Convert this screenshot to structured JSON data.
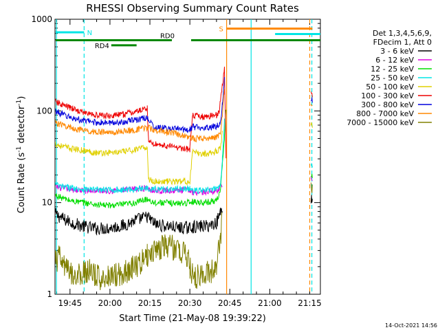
{
  "chart_data": {
    "type": "line",
    "title": "RHESSI Observing Summary Count Rates",
    "xlabel": "Start Time (21-May-08 19:39:22)",
    "ylabel_parts": [
      "Count Rate (s",
      "-1",
      " detector",
      "-1",
      ")"
    ],
    "ylabel": "Count Rate (s-1 detector-1)",
    "x_unit": "minutes of day (UT)",
    "xlim": [
      1179.37,
      1279.0
    ],
    "ylim": [
      1,
      1000
    ],
    "y_scale": "log",
    "x_ticks": [
      {
        "value": 1185,
        "label": "19:45"
      },
      {
        "value": 1200,
        "label": "20:00"
      },
      {
        "value": 1215,
        "label": "20:15"
      },
      {
        "value": 1230,
        "label": "20:30"
      },
      {
        "value": 1245,
        "label": "20:45"
      },
      {
        "value": 1260,
        "label": "21:00"
      },
      {
        "value": 1275,
        "label": "21:15"
      }
    ],
    "y_ticks": [
      {
        "value": 1,
        "label": "1"
      },
      {
        "value": 10,
        "label": "10"
      },
      {
        "value": 100,
        "label": "100"
      },
      {
        "value": 1000,
        "label": "1000"
      }
    ],
    "legend": {
      "placement": "right",
      "header": [
        "Det 1,3,4,5,6,9,",
        "FDecim 1, Att 0"
      ]
    },
    "series": [
      {
        "name": "3 - 6 keV",
        "color": "#000000",
        "x": [
          1179.5,
          1181,
          1183,
          1186,
          1190,
          1195,
          1200,
          1205,
          1210,
          1214,
          1216.5,
          1218,
          1222,
          1226,
          1230,
          1231,
          1234,
          1237,
          1240,
          1241.5,
          1242.2,
          1243,
          1274.5,
          1275.5,
          1276
        ],
        "y": [
          7.5,
          7,
          6.5,
          6,
          5.5,
          5.2,
          5.3,
          5.6,
          6.5,
          7,
          6,
          5.7,
          5.5,
          5.3,
          5.3,
          5.4,
          5.5,
          5.6,
          6,
          8,
          9,
          null,
          null,
          11,
          11
        ]
      },
      {
        "name": "6 - 12 keV",
        "color": "#e000e0",
        "x": [
          1179.5,
          1181,
          1185,
          1190,
          1195,
          1200,
          1205,
          1210,
          1214,
          1216.5,
          1220,
          1225,
          1230,
          1231,
          1235,
          1240,
          1241.5,
          1242.2,
          1243,
          1274.5,
          1275.5,
          1276
        ],
        "y": [
          15,
          14.5,
          14,
          13.5,
          13.5,
          13.5,
          13.7,
          14,
          14.5,
          13.5,
          13.5,
          13.5,
          13.8,
          13,
          13,
          13.5,
          15,
          16,
          null,
          null,
          18,
          18
        ]
      },
      {
        "name": "12 - 25 keV",
        "color": "#00dd00",
        "x": [
          1179.5,
          1181,
          1185,
          1190,
          1195,
          1200,
          1205,
          1210,
          1214,
          1216.5,
          1220,
          1225,
          1230,
          1231,
          1235,
          1240,
          1241.5,
          1242.2,
          1243,
          1243.5,
          1244,
          1274.5,
          1275.5,
          1276
        ],
        "y": [
          12,
          11.5,
          10.5,
          10,
          9.5,
          9.3,
          9.5,
          10,
          11,
          10,
          10,
          9.8,
          10,
          10.3,
          10,
          10.5,
          14,
          25,
          50,
          100,
          null,
          null,
          20,
          20
        ]
      },
      {
        "name": "25 - 50 keV",
        "color": "#00e5e5",
        "x": [
          1179.5,
          1181,
          1185,
          1190,
          1195,
          1200,
          1205,
          1210,
          1214,
          1216.5,
          1220,
          1225,
          1230,
          1231,
          1235,
          1240,
          1241.5,
          1242.2,
          1243,
          1244,
          1274.5,
          1275.5,
          1276
        ],
        "y": [
          16,
          15,
          14.5,
          14,
          13.8,
          13.7,
          13.8,
          14,
          14.5,
          14,
          14,
          14,
          14.2,
          13.5,
          13.5,
          14,
          16,
          30,
          80,
          null,
          null,
          25,
          25
        ]
      },
      {
        "name": "50 - 100 keV",
        "color": "#e0d000",
        "x": [
          1179.5,
          1181,
          1185,
          1190,
          1195,
          1200,
          1205,
          1210,
          1214,
          1214.5,
          1216.5,
          1220,
          1225,
          1230,
          1231,
          1235,
          1240,
          1241.5,
          1242.2,
          1243,
          1274.5,
          1275.5,
          1276
        ],
        "y": [
          44,
          42,
          39,
          37,
          35,
          35,
          36,
          38,
          40,
          18,
          17,
          17,
          17,
          17,
          35,
          34,
          36,
          40,
          60,
          null,
          null,
          70,
          70
        ]
      },
      {
        "name": "100 - 300 keV",
        "color": "#ee0000",
        "x": [
          1179.5,
          1181,
          1185,
          1190,
          1195,
          1200,
          1205,
          1210,
          1214,
          1214.5,
          1216.5,
          1220,
          1225,
          1230,
          1231,
          1235,
          1240,
          1241,
          1242,
          1243,
          1243.6,
          1244,
          1274.5,
          1275.5,
          1276
        ],
        "y": [
          125,
          120,
          108,
          96,
          90,
          88,
          92,
          98,
          108,
          46,
          44,
          42,
          40,
          38,
          88,
          86,
          90,
          100,
          170,
          290,
          30,
          null,
          null,
          150,
          150
        ]
      },
      {
        "name": "300 - 800 keV",
        "color": "#0000dd",
        "x": [
          1179.5,
          1181,
          1185,
          1190,
          1195,
          1200,
          1205,
          1210,
          1214,
          1216.5,
          1220,
          1225,
          1230,
          1231,
          1235,
          1240,
          1241.5,
          1242.2,
          1243,
          1244,
          1274.5,
          1275.5,
          1276
        ],
        "y": [
          100,
          95,
          85,
          78,
          75,
          74,
          76,
          80,
          85,
          66,
          65,
          64,
          62,
          67,
          66,
          68,
          75,
          120,
          220,
          null,
          null,
          130,
          130
        ]
      },
      {
        "name": "800 - 7000 keV",
        "color": "#ff8800",
        "x": [
          1179.5,
          1181,
          1185,
          1190,
          1195,
          1200,
          1205,
          1210,
          1214,
          1216.5,
          1220,
          1225,
          1230,
          1231,
          1235,
          1240,
          1241.5,
          1242.2,
          1243,
          1244,
          1274.5,
          1275.5,
          1276
        ],
        "y": [
          75,
          72,
          66,
          61,
          59,
          58,
          60,
          62,
          66,
          62,
          60,
          56,
          52,
          50,
          50,
          52,
          57,
          90,
          180,
          null,
          null,
          110,
          110
        ]
      },
      {
        "name": "7000 - 15000 keV",
        "color": "#808000",
        "x": [
          1179.5,
          1181,
          1184,
          1188,
          1192,
          1196,
          1200,
          1204,
          1208,
          1212,
          1214,
          1216,
          1218,
          1222,
          1226,
          1229,
          1230,
          1231,
          1234,
          1238,
          1240,
          1241.5,
          1242.2,
          1243,
          1274.5,
          1275.5,
          1276
        ],
        "y": [
          2.3,
          2.5,
          1.8,
          1.6,
          1.8,
          1.5,
          1.6,
          1.7,
          1.9,
          2.3,
          2.6,
          3,
          3.2,
          3.4,
          3,
          2.7,
          1.9,
          1.6,
          1.5,
          1.8,
          2.2,
          4,
          8,
          null,
          null,
          12,
          12
        ]
      }
    ],
    "state_bars": [
      {
        "label": "N",
        "color": "#00e5e5",
        "x0": 1179.6,
        "x1": 1190.3,
        "y": 720
      },
      {
        "label": "",
        "color": "#00e5e5",
        "x0": 1262,
        "x1": 1279,
        "y": 690
      },
      {
        "label": "S",
        "color": "#ff8800",
        "x0": 1243.8,
        "x1": 1276,
        "y": 790
      },
      {
        "label": "RD0",
        "color": "#008800",
        "x0": 1179.6,
        "x1": 1279,
        "y": 590
      },
      {
        "label": "RD4",
        "color": "#008800",
        "x0": 1200.5,
        "x1": 1210,
        "y": 520
      }
    ],
    "vertical_markers": [
      {
        "x": 1179.9,
        "color": "#00e5e5",
        "style": "solid"
      },
      {
        "x": 1190.3,
        "color": "#00e5e5",
        "style": "dashed"
      },
      {
        "x": 1243.8,
        "color": "#ff8800",
        "style": "solid"
      },
      {
        "x": 1253.0,
        "color": "#00e5e5",
        "style": "solid"
      },
      {
        "x": 1275.0,
        "color": "#ff8800",
        "style": "dashed"
      },
      {
        "x": 1275.8,
        "color": "#00e5e5",
        "style": "dashed"
      }
    ],
    "timestamp": "14-Oct-2021 14:56"
  }
}
